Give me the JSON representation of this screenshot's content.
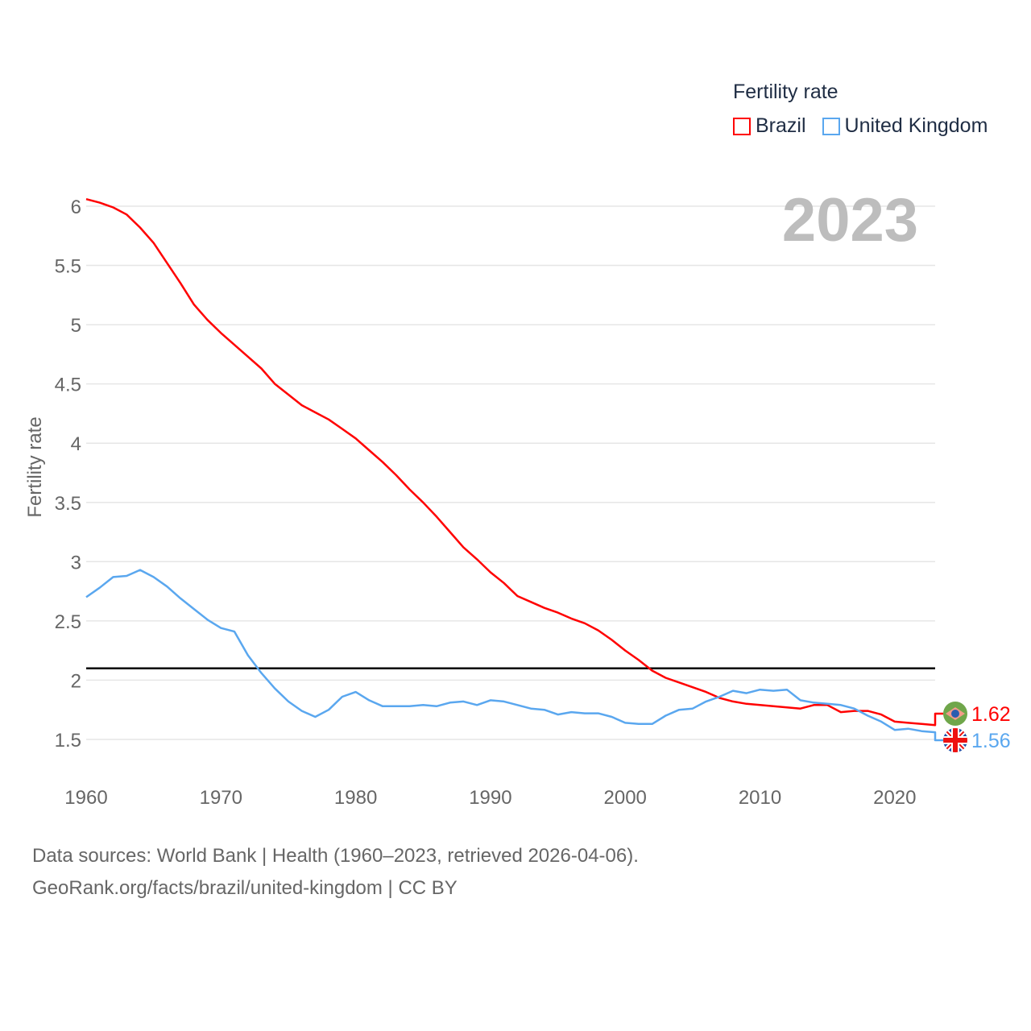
{
  "legend": {
    "title": "Fertility rate"
  },
  "year_display": "2023",
  "footer": {
    "line1": "Data sources: World Bank | Health (1960–2023, retrieved 2026-04-06).",
    "line2": "GeoRank.org/facts/brazil/united-kingdom | CC BY"
  },
  "chart_data": {
    "type": "line",
    "title": "",
    "xlabel": "",
    "ylabel": "Fertility rate",
    "xlim": [
      1960,
      2023
    ],
    "ylim": [
      1.5,
      6
    ],
    "xticks": [
      "1960",
      "1970",
      "1980",
      "1990",
      "2000",
      "2010",
      "2020"
    ],
    "yticks": [
      "1.5",
      "2",
      "2.5",
      "3",
      "3.5",
      "4",
      "4.5",
      "5",
      "5.5",
      "6"
    ],
    "grid": true,
    "legend_position": "top-right",
    "reference_line": 2.1,
    "x": [
      1960,
      1961,
      1962,
      1963,
      1964,
      1965,
      1966,
      1967,
      1968,
      1969,
      1970,
      1971,
      1972,
      1973,
      1974,
      1975,
      1976,
      1977,
      1978,
      1979,
      1980,
      1981,
      1982,
      1983,
      1984,
      1985,
      1986,
      1987,
      1988,
      1989,
      1990,
      1991,
      1992,
      1993,
      1994,
      1995,
      1996,
      1997,
      1998,
      1999,
      2000,
      2001,
      2002,
      2003,
      2004,
      2005,
      2006,
      2007,
      2008,
      2009,
      2010,
      2011,
      2012,
      2013,
      2014,
      2015,
      2016,
      2017,
      2018,
      2019,
      2020,
      2021,
      2022,
      2023
    ],
    "series": [
      {
        "name": "Brazil",
        "color": "#ff0000",
        "end_label": "1.62",
        "icon": "brazil-flag-icon",
        "values": [
          6.06,
          6.03,
          5.99,
          5.93,
          5.82,
          5.69,
          5.52,
          5.35,
          5.17,
          5.04,
          4.93,
          4.83,
          4.73,
          4.63,
          4.5,
          4.41,
          4.32,
          4.26,
          4.2,
          4.12,
          4.04,
          3.94,
          3.84,
          3.73,
          3.61,
          3.5,
          3.38,
          3.25,
          3.12,
          3.02,
          2.91,
          2.82,
          2.71,
          2.66,
          2.61,
          2.57,
          2.52,
          2.48,
          2.42,
          2.34,
          2.25,
          2.17,
          2.08,
          2.02,
          1.98,
          1.94,
          1.9,
          1.85,
          1.82,
          1.8,
          1.79,
          1.78,
          1.77,
          1.76,
          1.79,
          1.79,
          1.73,
          1.74,
          1.74,
          1.71,
          1.65,
          1.64,
          1.63,
          1.62
        ]
      },
      {
        "name": "United Kingdom",
        "color": "#5aa7ef",
        "end_label": "1.56",
        "icon": "uk-flag-icon",
        "values": [
          2.7,
          2.78,
          2.87,
          2.88,
          2.93,
          2.87,
          2.79,
          2.69,
          2.6,
          2.51,
          2.44,
          2.41,
          2.21,
          2.06,
          1.93,
          1.82,
          1.74,
          1.69,
          1.75,
          1.86,
          1.9,
          1.83,
          1.78,
          1.78,
          1.78,
          1.79,
          1.78,
          1.81,
          1.82,
          1.79,
          1.83,
          1.82,
          1.79,
          1.76,
          1.75,
          1.71,
          1.73,
          1.72,
          1.72,
          1.69,
          1.64,
          1.63,
          1.63,
          1.7,
          1.75,
          1.76,
          1.82,
          1.86,
          1.91,
          1.89,
          1.92,
          1.91,
          1.92,
          1.83,
          1.81,
          1.8,
          1.79,
          1.76,
          1.7,
          1.65,
          1.58,
          1.59,
          1.57,
          1.56
        ]
      }
    ]
  }
}
